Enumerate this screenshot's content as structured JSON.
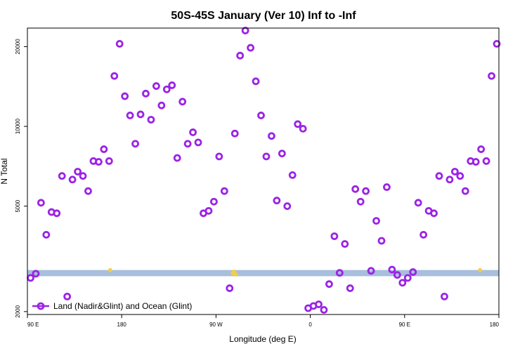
{
  "chart_data": {
    "type": "scatter",
    "title": "50S-45S January (Ver 10)   Inf to -Inf",
    "xlabel": "Longitude (deg E)",
    "ylabel": "N Total",
    "x_ticks": [
      {
        "value": 90,
        "label": "90 E"
      },
      {
        "value": 180,
        "label": "180"
      },
      {
        "value": 270,
        "label": "90 W"
      },
      {
        "value": 360,
        "label": "0"
      },
      {
        "value": 450,
        "label": "90 E"
      },
      {
        "value": 540,
        "label": "180"
      }
    ],
    "y_ticks": [
      {
        "value": 2000,
        "label": "2000"
      },
      {
        "value": 5000,
        "label": "5000"
      },
      {
        "value": 10000,
        "label": "10000"
      },
      {
        "value": 20000,
        "label": "20000"
      }
    ],
    "xlim": [
      90,
      540
    ],
    "ylim": [
      1950,
      23500
    ],
    "y_scale": "log",
    "band": {
      "y_min": 2720,
      "y_max": 2870,
      "color": "#a7bedc"
    },
    "band_markers": [
      {
        "x": 169,
        "y": 2865
      },
      {
        "x": 287,
        "y": 2830
      },
      {
        "x": 289,
        "y": 2760
      },
      {
        "x": 286,
        "y": 2790
      },
      {
        "x": 522,
        "y": 2865
      }
    ],
    "band_marker_color": "#f5cc4a",
    "series": [
      {
        "name": "Land (Nadir&Glint) and Ocean (Glint)",
        "color": "#9b23e6",
        "points": [
          [
            93,
            2680
          ],
          [
            98,
            2780
          ],
          [
            103,
            5150
          ],
          [
            108,
            3900
          ],
          [
            113,
            4750
          ],
          [
            118,
            4700
          ],
          [
            123,
            6500
          ],
          [
            128,
            2280
          ],
          [
            133,
            6300
          ],
          [
            138,
            6750
          ],
          [
            143,
            6500
          ],
          [
            148,
            5700
          ],
          [
            153,
            7400
          ],
          [
            158,
            7350
          ],
          [
            163,
            8200
          ],
          [
            168,
            7400
          ],
          [
            173,
            15500
          ],
          [
            178,
            20500
          ],
          [
            183,
            13000
          ],
          [
            188,
            11000
          ],
          [
            193,
            8600
          ],
          [
            198,
            11100
          ],
          [
            203,
            13300
          ],
          [
            208,
            10600
          ],
          [
            213,
            14200
          ],
          [
            218,
            12000
          ],
          [
            223,
            13800
          ],
          [
            228,
            14300
          ],
          [
            233,
            7600
          ],
          [
            238,
            12400
          ],
          [
            243,
            8600
          ],
          [
            248,
            9500
          ],
          [
            253,
            8700
          ],
          [
            258,
            4700
          ],
          [
            263,
            4800
          ],
          [
            268,
            5200
          ],
          [
            273,
            7700
          ],
          [
            278,
            5700
          ],
          [
            283,
            2450
          ],
          [
            288,
            9400
          ],
          [
            293,
            18500
          ],
          [
            298,
            23000
          ],
          [
            303,
            19800
          ],
          [
            308,
            14800
          ],
          [
            313,
            11000
          ],
          [
            318,
            7700
          ],
          [
            323,
            9200
          ],
          [
            328,
            5250
          ],
          [
            333,
            7900
          ],
          [
            338,
            5000
          ],
          [
            343,
            6550
          ],
          [
            348,
            10200
          ],
          [
            353,
            9800
          ],
          [
            358,
            2060
          ],
          [
            363,
            2100
          ],
          [
            368,
            2130
          ],
          [
            373,
            2030
          ],
          [
            378,
            2540
          ],
          [
            383,
            3850
          ],
          [
            388,
            2800
          ],
          [
            393,
            3600
          ],
          [
            398,
            2450
          ],
          [
            403,
            5800
          ],
          [
            408,
            5200
          ],
          [
            413,
            5700
          ],
          [
            418,
            2850
          ],
          [
            423,
            4400
          ],
          [
            428,
            3700
          ],
          [
            433,
            5900
          ],
          [
            438,
            2880
          ],
          [
            443,
            2750
          ],
          [
            448,
            2570
          ],
          [
            453,
            2680
          ],
          [
            458,
            2820
          ],
          [
            463,
            5150
          ],
          [
            468,
            3900
          ],
          [
            473,
            4800
          ],
          [
            478,
            4700
          ],
          [
            483,
            6500
          ],
          [
            488,
            2280
          ],
          [
            493,
            6300
          ],
          [
            498,
            6750
          ],
          [
            503,
            6500
          ],
          [
            508,
            5700
          ],
          [
            513,
            7400
          ],
          [
            518,
            7350
          ],
          [
            523,
            8200
          ],
          [
            528,
            7400
          ],
          [
            533,
            15500
          ],
          [
            538,
            20500
          ]
        ]
      }
    ],
    "legend": {
      "position": "bottom-left"
    }
  }
}
